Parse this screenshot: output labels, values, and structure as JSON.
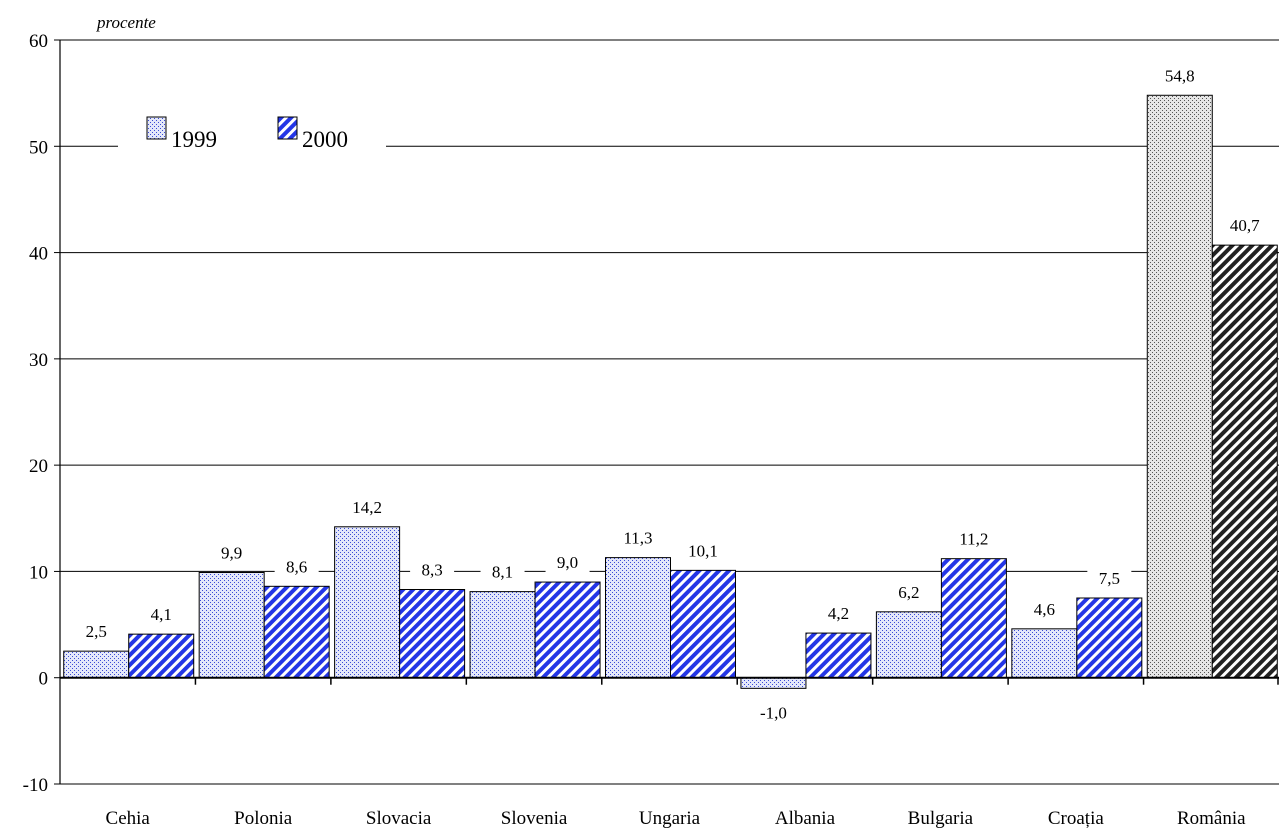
{
  "chart_data": {
    "type": "bar",
    "ylabel": "procente",
    "ylim": [
      -10,
      60
    ],
    "yticks": [
      -10,
      0,
      10,
      20,
      30,
      40,
      50,
      60
    ],
    "grid": true,
    "legend_position": "top-left",
    "categories": [
      "Cehia",
      "Polonia",
      "Slovacia",
      "Slovenia",
      "Ungaria",
      "Albania",
      "Bulgaria",
      "Croația",
      "România"
    ],
    "series": [
      {
        "name": "1999",
        "values": [
          2.5,
          9.9,
          14.2,
          8.1,
          11.3,
          -1.0,
          6.2,
          4.6,
          54.8
        ],
        "labels": [
          "2,5",
          "9,9",
          "14,2",
          "8,1",
          "11,3",
          "-1,0",
          "6,2",
          "4,6",
          "54,8"
        ],
        "color": "#dde3f7",
        "highlight_color": "#d9d9d9"
      },
      {
        "name": "2000",
        "values": [
          4.1,
          8.6,
          8.3,
          9.0,
          10.1,
          4.2,
          11.2,
          7.5,
          40.7
        ],
        "labels": [
          "4,1",
          "8,6",
          "8,3",
          "9,0",
          "10,1",
          "4,2",
          "11,2",
          "7,5",
          "40,7"
        ],
        "color": "#2f3ee0",
        "highlight_color": "#333333"
      }
    ],
    "highlight_category": "România"
  }
}
